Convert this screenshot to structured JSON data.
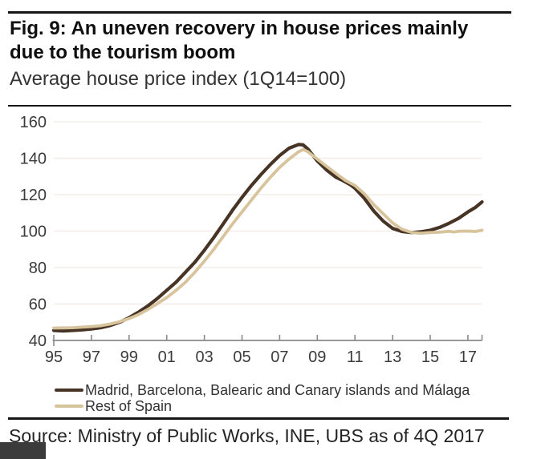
{
  "header": {
    "figure_title": "Fig. 9: An uneven recovery in house prices mainly due to the tourism boom",
    "subtitle": "Average house price index (1Q14=100)"
  },
  "chart_data": {
    "type": "line",
    "title": "Fig. 9: An uneven recovery in house prices mainly due to the tourism boom",
    "subtitle": "Average house price index (1Q14=100)",
    "xlabel": "",
    "ylabel": "",
    "xlim": [
      1995,
      2017.75
    ],
    "ylim": [
      40,
      160
    ],
    "grid": "horizontal",
    "grid_color": "#f3eee7",
    "axis_color": "#8a8a8a",
    "tick_label_color": "#3b3b3b",
    "legend_position": "bottom-left",
    "y_ticks": [
      40,
      60,
      80,
      100,
      120,
      140,
      160
    ],
    "x_ticks": [
      {
        "x": 1995,
        "label": "95"
      },
      {
        "x": 1997,
        "label": "97"
      },
      {
        "x": 1999,
        "label": "99"
      },
      {
        "x": 2001,
        "label": "01"
      },
      {
        "x": 2003,
        "label": "03"
      },
      {
        "x": 2005,
        "label": "05"
      },
      {
        "x": 2007,
        "label": "07"
      },
      {
        "x": 2009,
        "label": "09"
      },
      {
        "x": 2011,
        "label": "11"
      },
      {
        "x": 2013,
        "label": "13"
      },
      {
        "x": 2015,
        "label": "15"
      },
      {
        "x": 2017,
        "label": "17"
      }
    ],
    "series": [
      {
        "name": "Madrid, Barcelona, Balearic and Canary islands and Málaga",
        "color": "#473425",
        "stroke_width": 4.2,
        "x": [
          1995,
          1995.5,
          1996,
          1996.5,
          1997,
          1997.5,
          1998,
          1998.5,
          1999,
          1999.5,
          2000,
          2000.5,
          2001,
          2001.5,
          2002,
          2002.5,
          2003,
          2003.5,
          2004,
          2004.5,
          2005,
          2005.5,
          2006,
          2006.5,
          2007,
          2007.5,
          2008,
          2008.25,
          2008.5,
          2009,
          2009.5,
          2010,
          2010.4,
          2010.75,
          2011,
          2011.5,
          2012,
          2012.5,
          2013,
          2013.5,
          2014,
          2014.5,
          2015,
          2015.5,
          2016,
          2016.5,
          2017,
          2017.4,
          2017.75
        ],
        "values": [
          45.5,
          45.2,
          45.5,
          45.8,
          46.3,
          47.0,
          48.2,
          50.0,
          52.5,
          55.5,
          59.0,
          63.0,
          67.5,
          72.0,
          77.5,
          83.0,
          89.5,
          96.5,
          104.0,
          111.5,
          118.5,
          125.0,
          131.0,
          136.5,
          141.5,
          145.5,
          147.5,
          147.3,
          145.0,
          138.5,
          133.5,
          129.5,
          127.5,
          125.5,
          123.5,
          118.0,
          111.0,
          105.5,
          101.5,
          99.8,
          99.2,
          99.6,
          100.5,
          102.0,
          104.3,
          107.0,
          110.5,
          113.0,
          116.0
        ]
      },
      {
        "name": "Rest of Spain",
        "color": "#d8c49c",
        "stroke_width": 3.8,
        "x": [
          1995,
          1995.5,
          1996,
          1996.5,
          1997,
          1997.5,
          1998,
          1998.5,
          1999,
          1999.5,
          2000,
          2000.5,
          2001,
          2001.5,
          2002,
          2002.5,
          2003,
          2003.5,
          2004,
          2004.5,
          2005,
          2005.5,
          2006,
          2006.5,
          2007,
          2007.5,
          2008,
          2008.25,
          2008.5,
          2009,
          2009.5,
          2010,
          2010.5,
          2011,
          2011.5,
          2012,
          2012.5,
          2013,
          2013.5,
          2014,
          2014.5,
          2015,
          2015.5,
          2016,
          2016.25,
          2016.5,
          2017,
          2017.4,
          2017.75
        ],
        "values": [
          46.8,
          46.9,
          47.0,
          47.3,
          47.6,
          48.1,
          49.0,
          50.3,
          52.0,
          54.2,
          57.0,
          60.2,
          63.5,
          67.5,
          72.0,
          77.5,
          83.5,
          90.0,
          97.0,
          104.0,
          110.5,
          117.0,
          123.5,
          129.5,
          135.0,
          139.5,
          143.5,
          144.8,
          143.5,
          139.5,
          135.5,
          131.5,
          127.8,
          125.0,
          120.5,
          114.5,
          109.5,
          104.5,
          101.0,
          99.3,
          98.8,
          99.2,
          99.4,
          99.9,
          99.5,
          99.9,
          100.0,
          99.8,
          100.5
        ]
      }
    ]
  },
  "footer": {
    "source": "Source: Ministry of Public Works, INE, UBS as of 4Q 2017",
    "overlay_box_color": "#3b3b3b"
  }
}
